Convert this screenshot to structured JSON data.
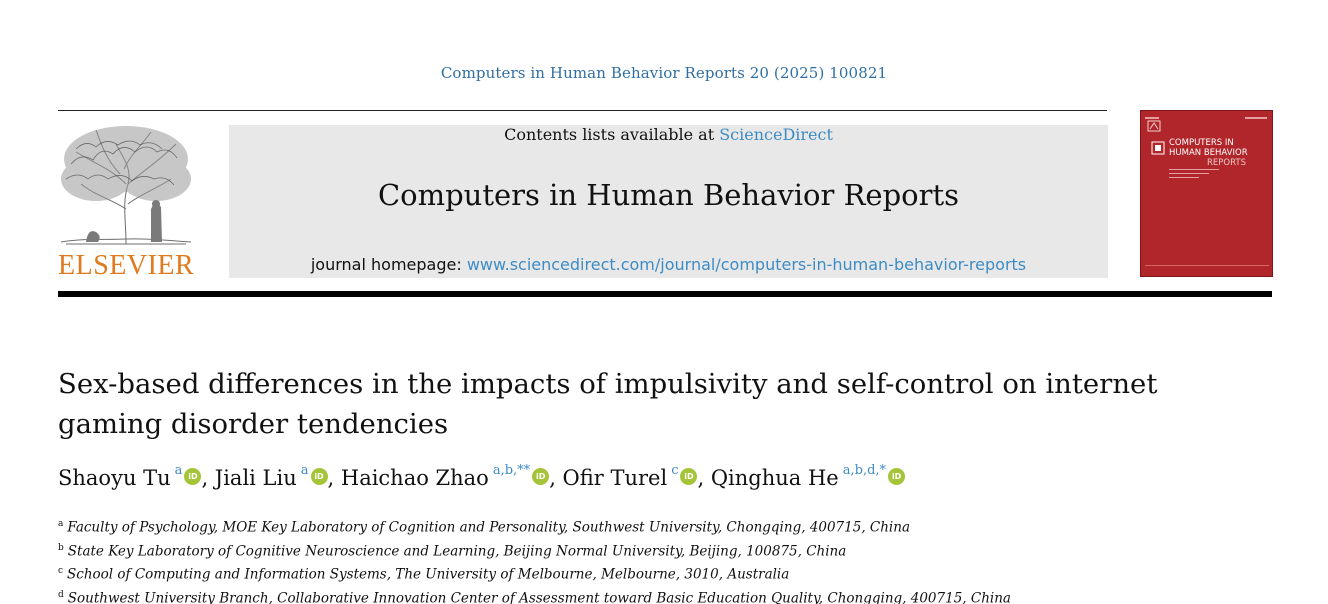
{
  "citation": "Computers in Human Behavior Reports 20 (2025) 100821",
  "masthead": {
    "contents_prefix": "Contents lists available at ",
    "contents_link": "ScienceDirect",
    "journal_title": "Computers in Human Behavior Reports",
    "homepage_prefix": "journal homepage: ",
    "homepage_url": "www.sciencedirect.com/journal/computers-in-human-behavior-reports"
  },
  "publisher": {
    "name": "ELSEVIER",
    "brand_color": "#e07a1c"
  },
  "cover": {
    "title_line1": "COMPUTERS IN",
    "title_line2": "HUMAN BEHAVIOR",
    "title_line3": "REPORTS",
    "color": "#b0262a"
  },
  "article": {
    "title": "Sex-based differences in the impacts of impulsivity and self-control on internet gaming disorder tendencies"
  },
  "authors": [
    {
      "name": "Shaoyu Tu",
      "sup": "a"
    },
    {
      "name": "Jiali Liu",
      "sup": "a"
    },
    {
      "name": "Haichao Zhao",
      "sup": "a,b,**"
    },
    {
      "name": "Ofir Turel",
      "sup": "c"
    },
    {
      "name": "Qinghua He",
      "sup": "a,b,d,*"
    }
  ],
  "orcid_label": "iD",
  "affiliations": [
    {
      "sup": "a",
      "text": "Faculty of Psychology, MOE Key Laboratory of Cognition and Personality, Southwest University, Chongqing, 400715, China"
    },
    {
      "sup": "b",
      "text": "State Key Laboratory of Cognitive Neuroscience and Learning, Beijing Normal University, Beijing, 100875, China"
    },
    {
      "sup": "c",
      "text": "School of Computing and Information Systems, The University of Melbourne, Melbourne, 3010, Australia"
    },
    {
      "sup": "d",
      "text": "Southwest University Branch, Collaborative Innovation Center of Assessment toward Basic Education Quality, Chongqing, 400715, China"
    }
  ],
  "colors": {
    "link": "#3d8cc4",
    "citation": "#2f6fa3",
    "orcid": "#a6c43a",
    "masthead_bg": "#e8e8e8"
  }
}
